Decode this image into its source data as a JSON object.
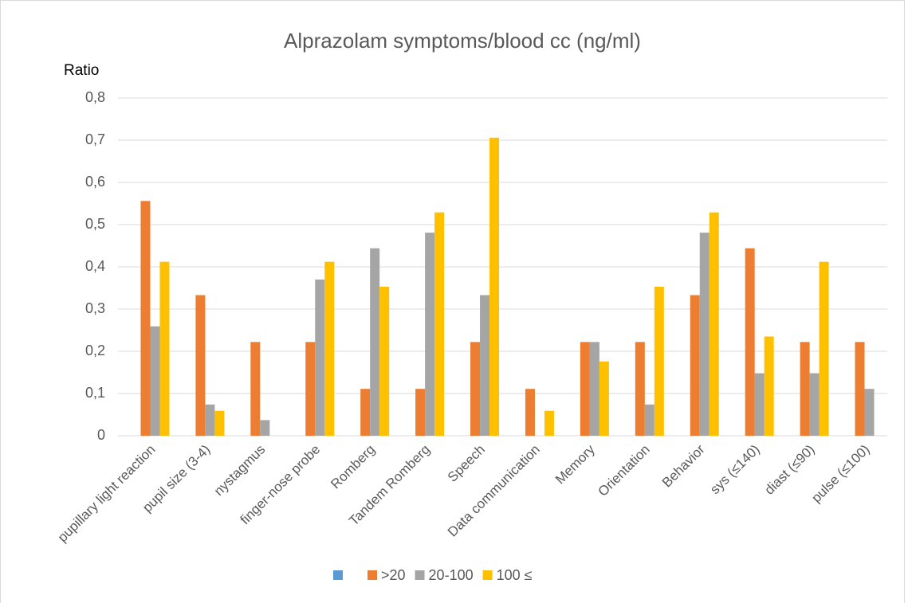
{
  "chart_data": {
    "type": "bar",
    "title": "Alprazolam symptoms/blood cc (ng/ml)",
    "y_label": "Ratio",
    "categories": [
      "pupillary light reaction",
      "pupil size  (3-4)",
      "nystagmus",
      "finger-nose probe",
      "Romberg",
      "Tandem Romberg",
      "Speech",
      "Data communication",
      "Memory",
      "Orientation",
      "Behavior",
      "sys (≤140)",
      "diast (≤90)",
      "pulse (≤100)"
    ],
    "series": [
      {
        "name": null,
        "color": "#5b9bd5",
        "values": [
          null,
          null,
          null,
          null,
          null,
          null,
          null,
          null,
          null,
          null,
          null,
          null,
          null,
          null
        ]
      },
      {
        "name": ">20",
        "color": "#ed7d31",
        "values": [
          0.556,
          0.333,
          0.222,
          0.222,
          0.111,
          0.111,
          0.222,
          0.111,
          0.222,
          0.222,
          0.333,
          0.444,
          0.222,
          0.222
        ]
      },
      {
        "name": "20-100",
        "color": "#a5a5a5",
        "values": [
          0.259,
          0.074,
          0.037,
          0.37,
          0.444,
          0.481,
          0.333,
          0,
          0.222,
          0.074,
          0.481,
          0.148,
          0.148,
          0.111
        ]
      },
      {
        "name": "100 ≤",
        "color": "#ffc000",
        "values": [
          0.412,
          0.059,
          0,
          0.412,
          0.353,
          0.529,
          0.706,
          0.059,
          0.176,
          0.353,
          0.529,
          0.235,
          0.412,
          0
        ]
      }
    ],
    "ylim": [
      0,
      0.8
    ],
    "yticks": [
      0,
      {
        "value": 0.1,
        "label": "0,1"
      },
      {
        "value": 0.2,
        "label": "0,2"
      },
      {
        "value": 0.3,
        "label": "0,3"
      },
      {
        "value": 0.4,
        "label": "0,4"
      },
      {
        "value": 0.5,
        "label": "0,5"
      },
      {
        "value": 0.6,
        "label": "0,6"
      },
      {
        "value": 0.7,
        "label": "0,7"
      },
      {
        "value": 0.8,
        "label": "0,8"
      }
    ],
    "grid": true,
    "legend": "bottom"
  }
}
